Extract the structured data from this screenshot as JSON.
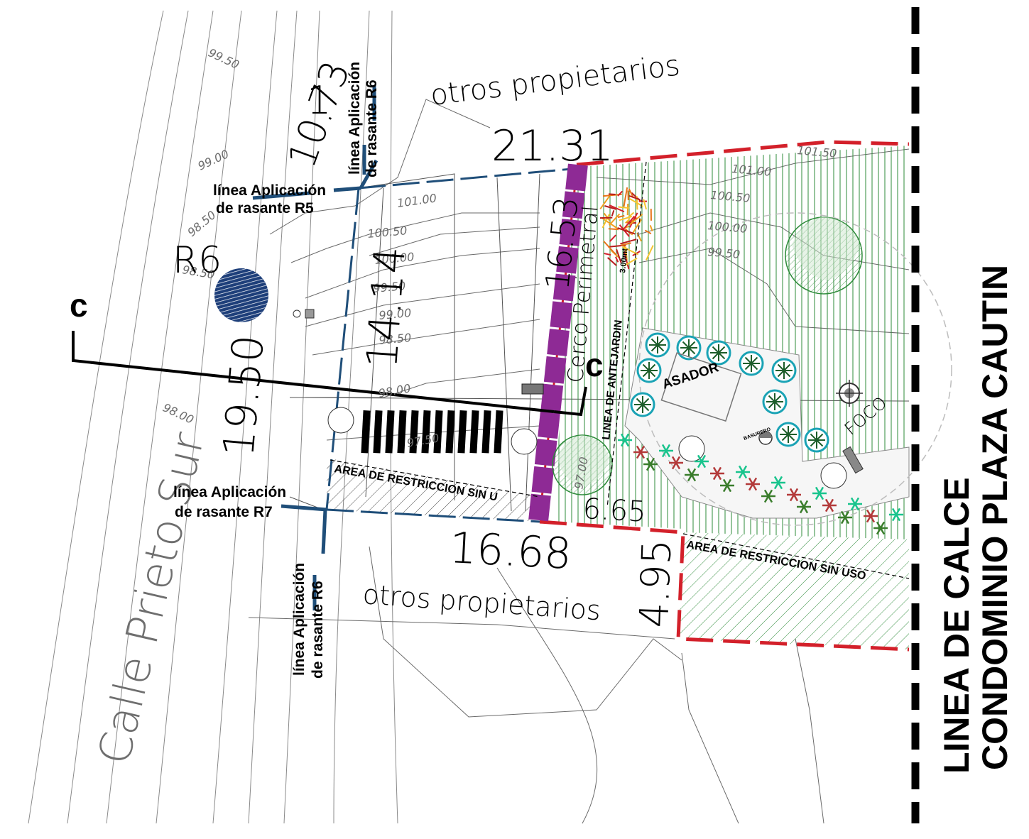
{
  "colors": {
    "property_boundary": "#d3202a",
    "fence": "#8e2a95",
    "rasante_line": "#1f4e79",
    "garden_hatch": "#2e8b3a",
    "calce_line": "#000000"
  },
  "labels": {
    "otros_top": "otros propietarios",
    "otros_bottom": "otros propietarios",
    "street": "Calle Prieto Sur",
    "r6_marker": "R6",
    "section_c_left": "c",
    "section_c_right": "c",
    "cerco": "Cerco Perimetral",
    "antejardin": "LINEA DE ANTEJARDIN",
    "antejardin_dim": "3.00mt",
    "asador": "ASADOR",
    "foco": "FOCO",
    "restr_left": "AREA DE RESTRICCION SIN U",
    "restr_right": "AREA DE RESTRICCION SIN USO",
    "calce_1": "LINEA DE CALCE",
    "calce_2": "CONDOMINIO PLAZA CAUTIN",
    "basurero": "BASURERO"
  },
  "rasante": {
    "r5_line1": "línea  Aplicación",
    "r5_line2": "de rasante R5",
    "r6_top_line1": "línea  Aplicación",
    "r6_top_line2": "de rasante R6",
    "r7_line1": "línea  Aplicación",
    "r7_line2": "de rasante R7",
    "r6_bottom_line1": "línea  Aplicación",
    "r6_bottom_line2": "de rasante R6"
  },
  "dimensions": {
    "top": "21.31",
    "inner_vertical": "14.14",
    "fence_vertical": "16.53",
    "left_vertical": "19.50",
    "bottom": "16.68",
    "step_h": "6.65",
    "step_v": "4.95",
    "diag_1": "10.73",
    "diag_2": "1"
  },
  "contours": [
    "99.50",
    "99.00",
    "98.50",
    "98.50",
    "101.00",
    "100.50",
    "100.00",
    "99.50",
    "99.00",
    "98.50",
    "98.00",
    "97.50",
    "101.50",
    "101.00",
    "100.50",
    "100.00",
    "99.50",
    "97.00"
  ]
}
